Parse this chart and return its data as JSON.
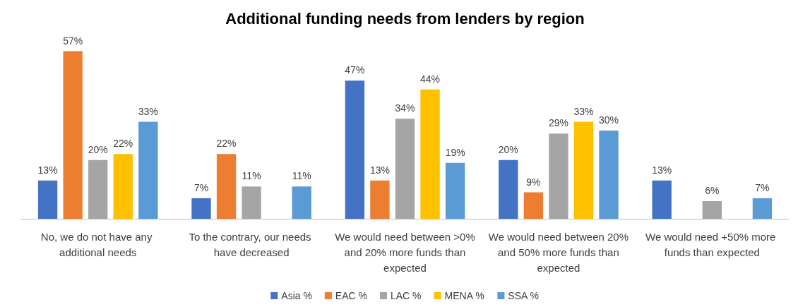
{
  "chart_data": {
    "type": "bar",
    "title": "Additional funding needs from lenders by region",
    "categories": [
      "No, we do not have any additional needs",
      "To the contrary, our needs have decreased",
      "We would need between >0% and 20% more funds than expected",
      "We would need between 20% and 50% more funds than expected",
      "We would need +50% more funds than expected"
    ],
    "series": [
      {
        "name": "Asia %",
        "color": "#4472c4",
        "values": [
          13,
          7,
          47,
          20,
          13
        ],
        "value_labels": [
          "13%",
          "7%",
          "47%",
          "20%",
          "13%"
        ]
      },
      {
        "name": "EAC %",
        "color": "#ed7d31",
        "values": [
          57,
          22,
          13,
          9,
          null
        ],
        "value_labels": [
          "57%",
          "22%",
          "13%",
          "9%",
          null
        ]
      },
      {
        "name": "LAC %",
        "color": "#a5a5a5",
        "values": [
          20,
          11,
          34,
          29,
          6
        ],
        "value_labels": [
          "20%",
          "11%",
          "34%",
          "29%",
          "6%"
        ]
      },
      {
        "name": "MENA %",
        "color": "#ffc000",
        "values": [
          22,
          null,
          44,
          33,
          null
        ],
        "value_labels": [
          "22%",
          null,
          "44%",
          "33%",
          null
        ]
      },
      {
        "name": "SSA %",
        "color": "#5b9bd5",
        "values": [
          33,
          11,
          19,
          30,
          7
        ],
        "value_labels": [
          "33%",
          "11%",
          "19%",
          "30%",
          "7%"
        ]
      }
    ],
    "legend": "bottom"
  }
}
